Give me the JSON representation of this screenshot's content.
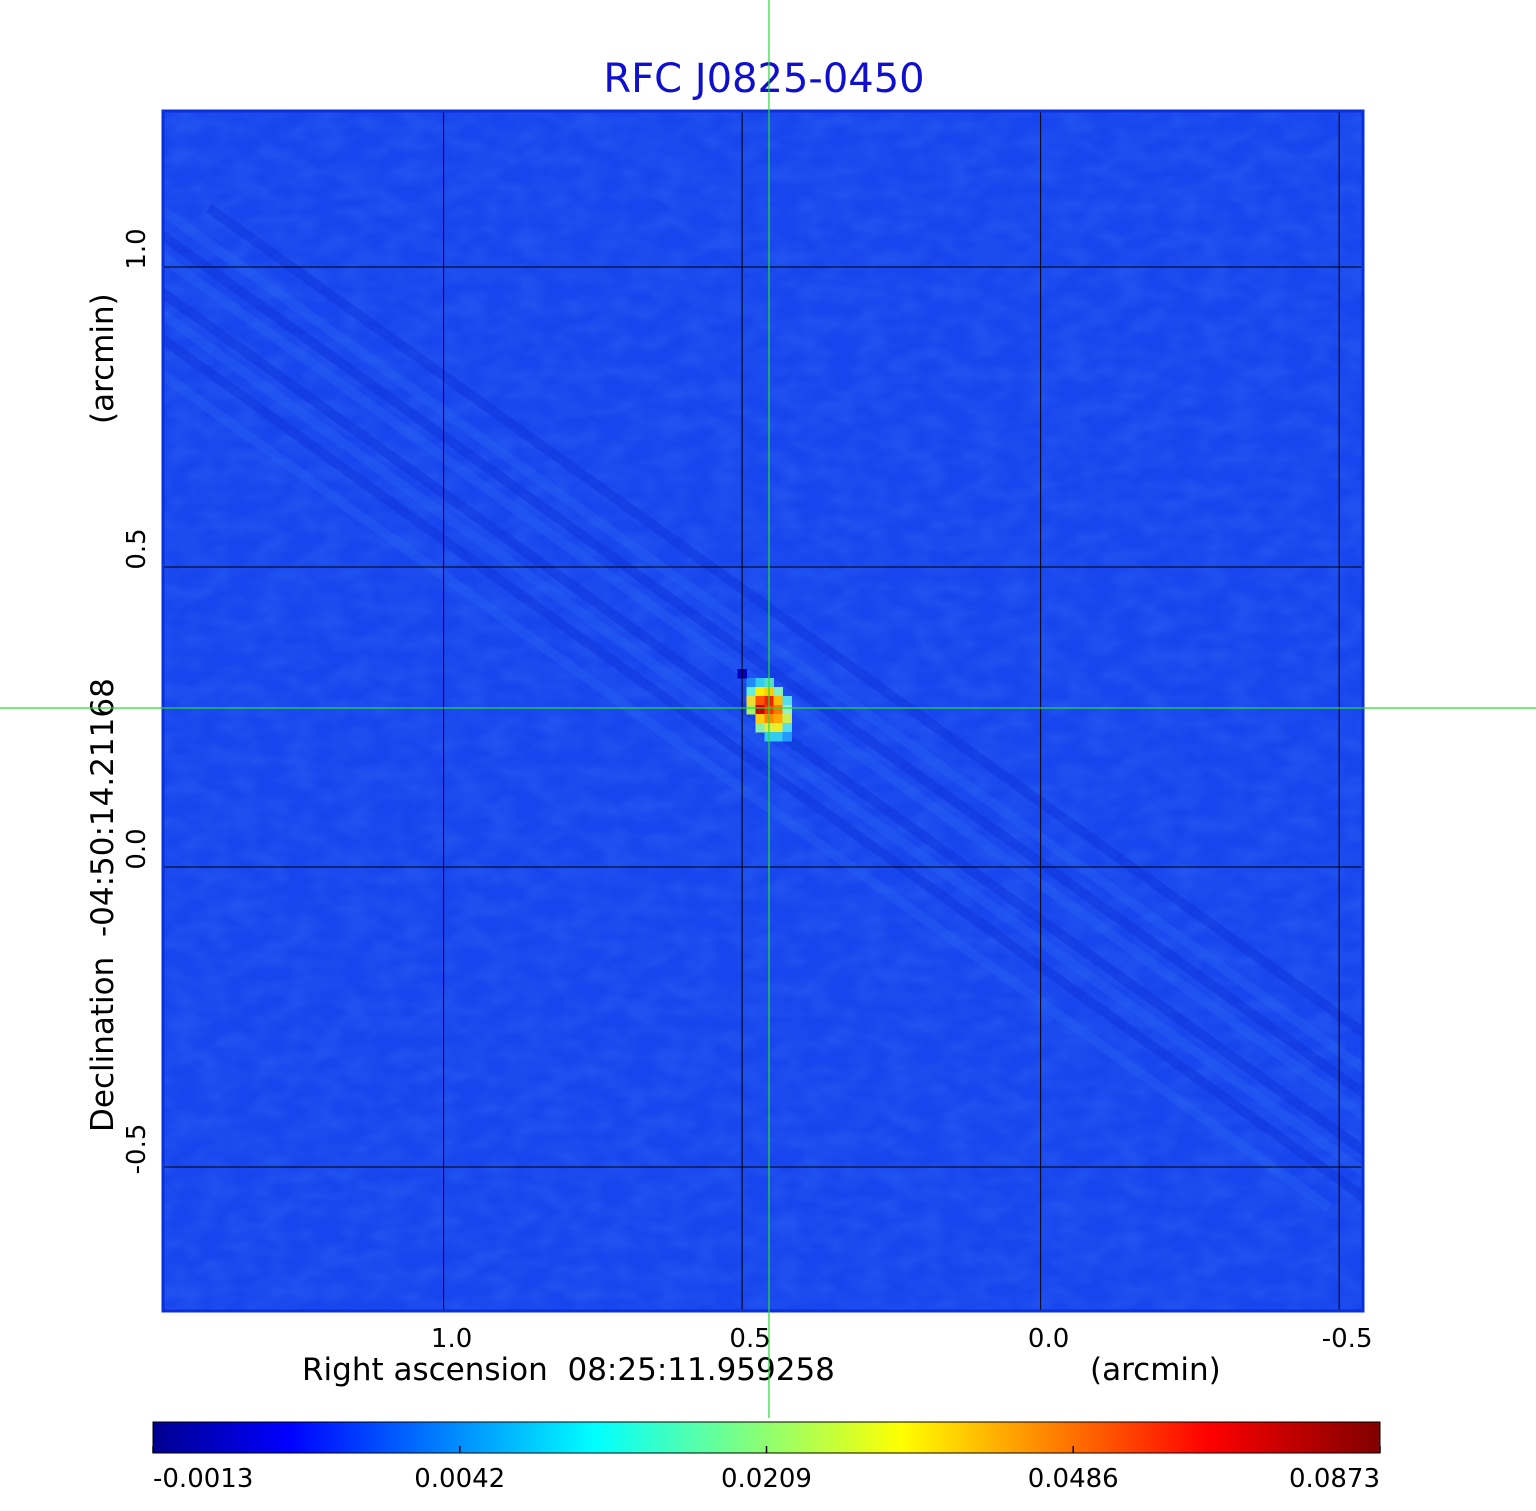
{
  "chart_data": {
    "type": "heatmap",
    "title": "RFC J0825-0450",
    "xlabel": "Right ascension  08:25:11.959258",
    "xunit": "(arcmin)",
    "ylabel": "Declination  -04:50:14.21168",
    "yunit": "(arcmin)",
    "xlim": [
      1.47,
      -0.54
    ],
    "ylim": [
      -0.74,
      1.26
    ],
    "x_ticks": [
      {
        "value": 1.0,
        "label": "1.0"
      },
      {
        "value": 0.5,
        "label": "0.5"
      },
      {
        "value": 0.0,
        "label": "0.0"
      },
      {
        "value": -0.5,
        "label": "-0.5"
      }
    ],
    "y_ticks": [
      {
        "value": 1.0,
        "label": "1.0"
      },
      {
        "value": 0.5,
        "label": "0.5"
      },
      {
        "value": 0.0,
        "label": "0.0"
      },
      {
        "value": -0.5,
        "label": "-0.5"
      }
    ],
    "grid": true,
    "crosshair": {
      "x": 0.455,
      "y": 0.265
    },
    "source": {
      "x": 0.455,
      "y": 0.265,
      "peak": 0.0873
    },
    "colorbar": {
      "orientation": "horizontal",
      "colormap": "jet",
      "tick_labels": [
        "-0.0013",
        "0.0042",
        "0.0209",
        "0.0486",
        "0.0873"
      ]
    },
    "background_color": "#1846ee",
    "grid_color": "#000000",
    "crosshair_color": "#22dd33",
    "title_color": "#1010cc"
  }
}
